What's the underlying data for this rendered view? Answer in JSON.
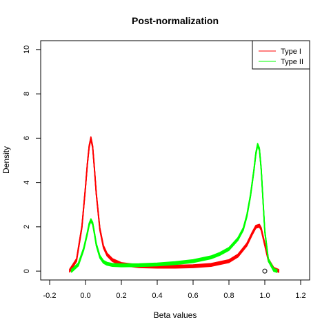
{
  "chart_data": {
    "type": "line",
    "title": "Post-normalization",
    "xlabel": "Beta values",
    "ylabel": "Density",
    "xlim": [
      -0.25,
      1.25
    ],
    "ylim": [
      -0.4,
      10.4
    ],
    "x_ticks": [
      "-0.2",
      "0.0",
      "0.2",
      "0.4",
      "0.6",
      "0.8",
      "1.0",
      "1.2"
    ],
    "x_tick_values": [
      -0.2,
      0.0,
      0.2,
      0.4,
      0.6,
      0.8,
      1.0,
      1.2
    ],
    "y_ticks": [
      "0",
      "2",
      "4",
      "6",
      "8",
      "10"
    ],
    "y_tick_values": [
      0,
      2,
      4,
      6,
      8,
      10
    ],
    "grid": false,
    "legend": {
      "position": "top-right",
      "entries": [
        {
          "label": "Type I",
          "color": "#ff0000"
        },
        {
          "label": "Type II",
          "color": "#00ff00"
        }
      ]
    },
    "series": [
      {
        "name": "Type I",
        "color": "#ff0000",
        "x": [
          -0.09,
          -0.05,
          -0.02,
          0.0,
          0.01,
          0.02,
          0.03,
          0.04,
          0.05,
          0.06,
          0.08,
          0.1,
          0.12,
          0.15,
          0.2,
          0.3,
          0.4,
          0.5,
          0.6,
          0.7,
          0.8,
          0.85,
          0.9,
          0.93,
          0.95,
          0.97,
          0.98,
          1.0,
          1.02,
          1.05,
          1.08
        ],
        "y": [
          0.0,
          0.5,
          2.0,
          3.8,
          4.8,
          5.6,
          6.0,
          5.6,
          4.6,
          3.5,
          1.9,
          1.1,
          0.75,
          0.5,
          0.32,
          0.22,
          0.2,
          0.2,
          0.22,
          0.28,
          0.45,
          0.7,
          1.2,
          1.7,
          2.0,
          2.05,
          1.9,
          1.2,
          0.5,
          0.1,
          0.0
        ]
      },
      {
        "name": "Type II",
        "color": "#00ff00",
        "x": [
          -0.08,
          -0.04,
          -0.01,
          0.01,
          0.02,
          0.03,
          0.04,
          0.05,
          0.06,
          0.08,
          0.1,
          0.12,
          0.15,
          0.2,
          0.3,
          0.4,
          0.5,
          0.6,
          0.7,
          0.75,
          0.8,
          0.85,
          0.88,
          0.9,
          0.92,
          0.94,
          0.95,
          0.96,
          0.97,
          0.98,
          0.99,
          1.0,
          1.02,
          1.05,
          1.07
        ],
        "y": [
          0.0,
          0.3,
          1.0,
          1.7,
          2.1,
          2.3,
          2.15,
          1.7,
          1.2,
          0.65,
          0.42,
          0.33,
          0.28,
          0.26,
          0.27,
          0.3,
          0.36,
          0.45,
          0.62,
          0.78,
          1.0,
          1.45,
          1.9,
          2.5,
          3.4,
          4.6,
          5.3,
          5.7,
          5.5,
          4.6,
          3.2,
          1.8,
          0.5,
          0.05,
          0.0
        ]
      }
    ],
    "annotation_points": [
      {
        "x": 1.0,
        "y": 0.0,
        "marker": "open-circle"
      }
    ]
  }
}
